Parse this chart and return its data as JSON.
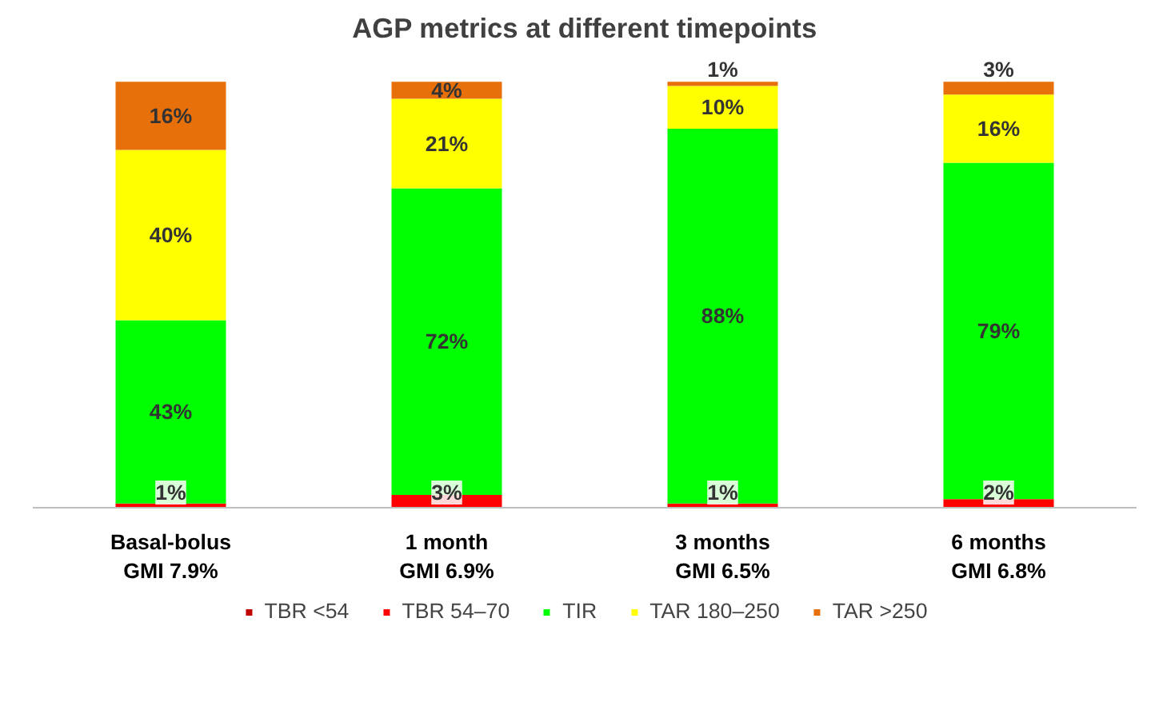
{
  "chart_data": {
    "type": "bar",
    "title": "AGP metrics at different timepoints",
    "categories": [
      "Basal-bolus\nGMI 7.9%",
      "1 month\nGMI 6.9%",
      "3 months\nGMI 6.5%",
      "6 months\nGMI 6.8%"
    ],
    "stacked": true,
    "grid": false,
    "legend": "bottom",
    "tick_labels": "x",
    "series": [
      {
        "name": "TBR <54",
        "color": "#c00000",
        "values": [
          null,
          null,
          null,
          null
        ],
        "value_labels": [
          null,
          null,
          null,
          null
        ]
      },
      {
        "name": "TBR 54–70",
        "color": "#ff0000",
        "values": [
          1,
          3,
          1,
          2
        ],
        "value_labels": [
          "1%",
          "3%",
          "1%",
          "2%"
        ]
      },
      {
        "name": "TIR",
        "color": "#00ff00",
        "values": [
          43,
          72,
          88,
          79
        ],
        "value_labels": [
          "43%",
          "72%",
          "88%",
          "79%"
        ]
      },
      {
        "name": "TAR 180–250",
        "color": "#ffff00",
        "values": [
          40,
          21,
          10,
          16
        ],
        "value_labels": [
          "40%",
          "21%",
          "10%",
          "16%"
        ]
      },
      {
        "name": "TAR >250",
        "color": "#e8700a",
        "values": [
          16,
          4,
          1,
          3
        ],
        "value_labels": [
          "16%",
          "4%",
          "1%",
          "3%"
        ]
      }
    ]
  }
}
